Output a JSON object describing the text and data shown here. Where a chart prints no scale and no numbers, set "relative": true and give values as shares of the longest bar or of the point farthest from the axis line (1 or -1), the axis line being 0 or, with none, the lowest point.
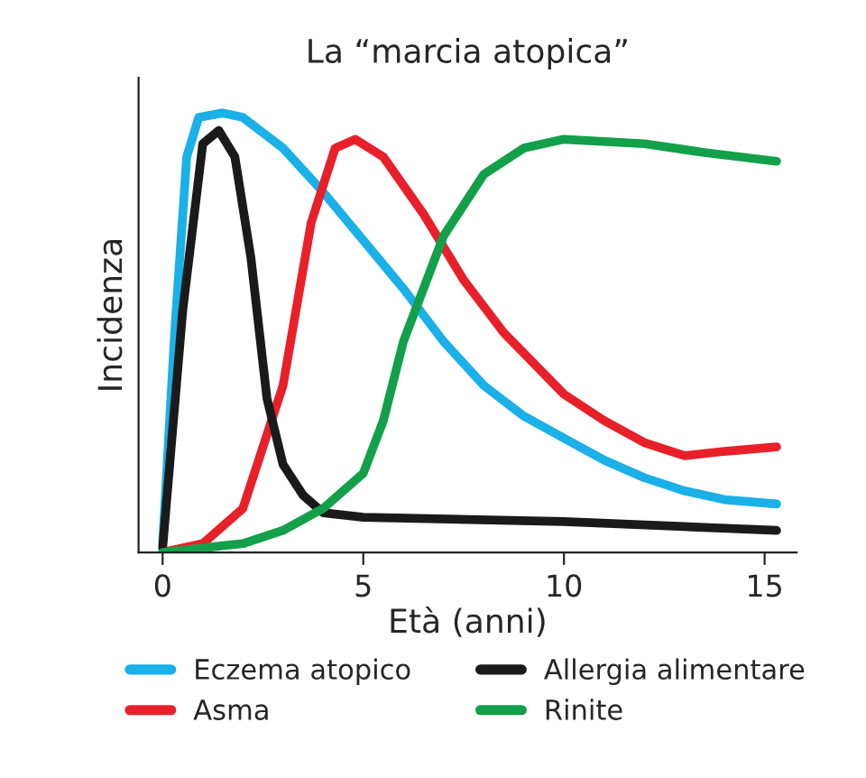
{
  "chart_data": {
    "type": "line",
    "title": "La “marcia atopica”",
    "xlabel": "Età (anni)",
    "ylabel": "Incidenza",
    "relative": true,
    "xlim": [
      -0.6,
      15.8
    ],
    "xticks": [
      0,
      5,
      10,
      15
    ],
    "legend": "bottom",
    "grid": false,
    "series": [
      {
        "name": "Eczema atopico",
        "color": "#1ab0e8",
        "x": [
          0,
          0.3,
          0.6,
          0.9,
          1.5,
          2,
          3,
          4,
          5,
          6,
          7,
          8,
          9,
          10,
          11,
          12,
          13,
          14,
          15.3
        ],
        "values": [
          0.02,
          0.5,
          0.9,
          0.99,
          1.0,
          0.99,
          0.92,
          0.82,
          0.71,
          0.6,
          0.48,
          0.38,
          0.31,
          0.26,
          0.21,
          0.17,
          0.14,
          0.12,
          0.11
        ]
      },
      {
        "name": "Asma",
        "color": "#e8202a",
        "x": [
          0,
          1,
          2,
          3,
          3.7,
          4.3,
          4.8,
          5.5,
          6.5,
          7.5,
          8.5,
          10,
          11,
          12,
          13,
          14,
          15.3
        ],
        "values": [
          0.0,
          0.02,
          0.1,
          0.38,
          0.75,
          0.92,
          0.94,
          0.9,
          0.77,
          0.62,
          0.5,
          0.36,
          0.3,
          0.25,
          0.22,
          0.23,
          0.24
        ]
      },
      {
        "name": "Allergia alimentare",
        "color": "#1a1a1a",
        "x": [
          0,
          0.5,
          1,
          1.4,
          1.8,
          2.2,
          2.6,
          3,
          3.5,
          4,
          5,
          10,
          15.3
        ],
        "values": [
          0.01,
          0.55,
          0.93,
          0.96,
          0.9,
          0.67,
          0.35,
          0.2,
          0.13,
          0.09,
          0.08,
          0.07,
          0.05
        ]
      },
      {
        "name": "Rinite",
        "color": "#12a04a",
        "x": [
          0,
          2,
          3,
          4,
          5,
          5.5,
          6,
          7,
          8,
          9,
          10,
          12,
          13.5,
          15.3
        ],
        "values": [
          0.0,
          0.02,
          0.05,
          0.1,
          0.18,
          0.3,
          0.48,
          0.72,
          0.86,
          0.92,
          0.94,
          0.93,
          0.91,
          0.89
        ]
      }
    ]
  }
}
